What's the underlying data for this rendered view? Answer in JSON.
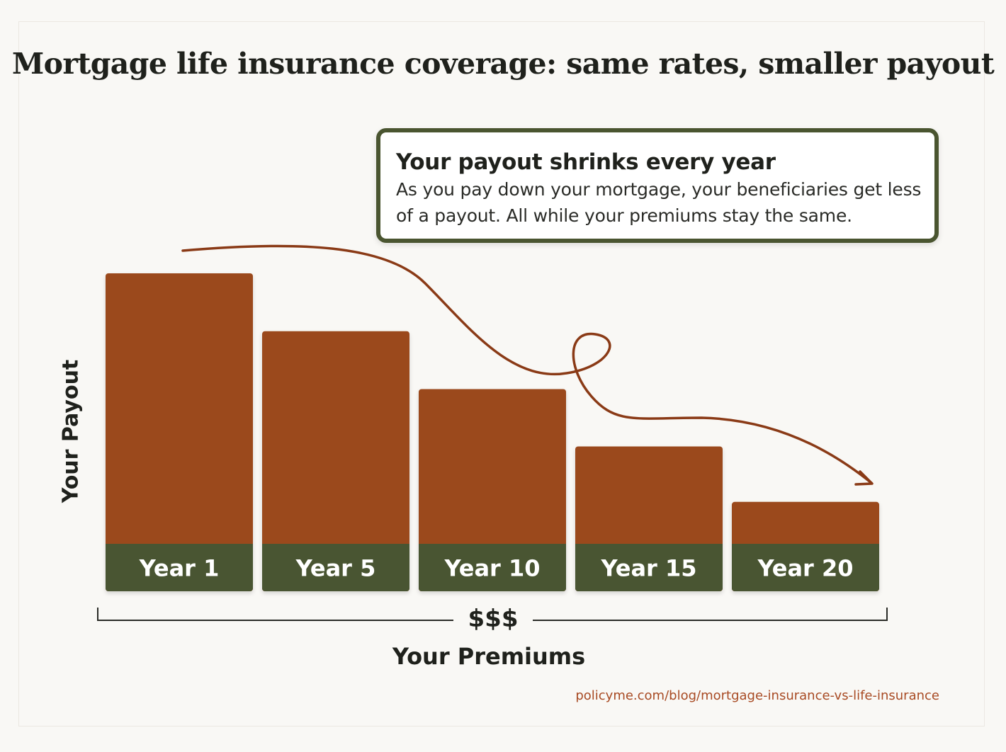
{
  "title": "Mortgage life insurance coverage: same rates, smaller payout",
  "callout": {
    "heading": "Your payout shrinks every year",
    "body": "As you pay down your mortgage, your beneficiaries get less of a payout. All while your premiums stay the same."
  },
  "premium_marker": "$$$",
  "source": "policyme.com/blog/mortgage-insurance-vs-life-insurance",
  "colors": {
    "bar": "#9b4a1d",
    "label_band": "#4a5530",
    "label_text": "#ffffff",
    "arrow": "#8a3a16",
    "callout_border": "#4a5530",
    "source_text": "#a84a23"
  },
  "chart_data": {
    "type": "bar",
    "categories": [
      "Year 1",
      "Year 5",
      "Year 10",
      "Year 15",
      "Year 20"
    ],
    "values": [
      100,
      78.6,
      57.2,
      36.0,
      15.5
    ],
    "xlabel": "Your Premiums",
    "ylabel": "Your Payout",
    "ylim": [
      0,
      100
    ],
    "grid": false,
    "legend": "none",
    "annotation": "decreasing arrow over bars"
  }
}
